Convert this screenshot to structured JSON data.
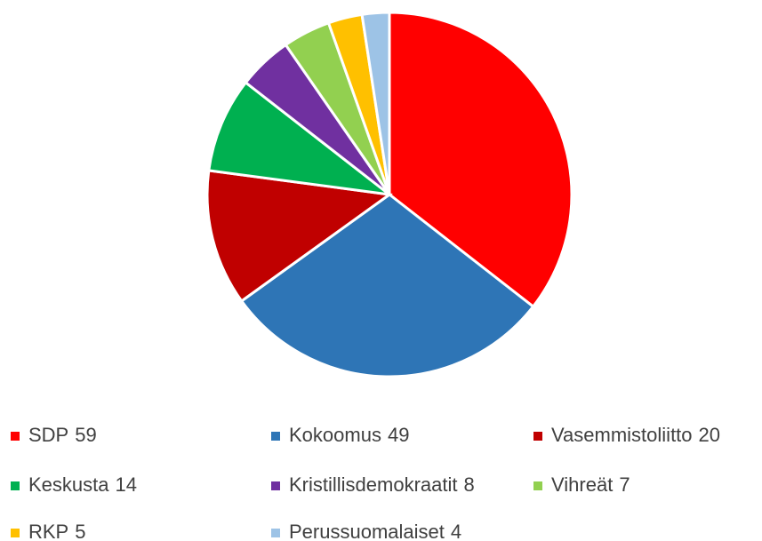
{
  "chart_data": {
    "type": "pie",
    "categories": [
      "SDP",
      "Kokoomus",
      "Vasemmistoliitto",
      "Keskusta",
      "Kristillisdemokraatit",
      "Vihreät",
      "RKP",
      "Perussuomalaiset"
    ],
    "values": [
      59,
      49,
      20,
      14,
      8,
      7,
      5,
      4
    ],
    "colors": [
      "#ff0000",
      "#2e75b6",
      "#c00000",
      "#00b050",
      "#7030a0",
      "#92d050",
      "#ffc000",
      "#9dc3e6"
    ]
  }
}
